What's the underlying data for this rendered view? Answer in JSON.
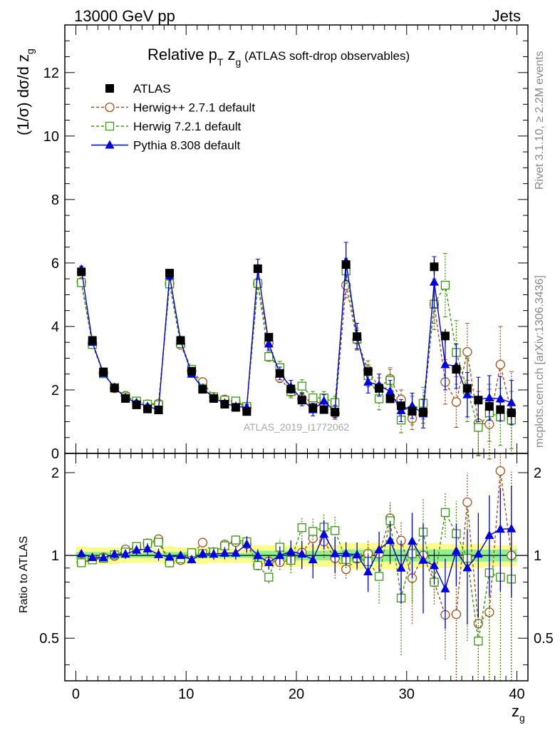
{
  "header": {
    "left": "13000 GeV pp",
    "right": "Jets"
  },
  "side_labels": {
    "rivet": "Rivet 3.1.10, ≥ 2.2M events",
    "mcplots": "mcplots.cern.ch [arXiv:1306.3436]"
  },
  "colors": {
    "atlas": "#000000",
    "herwigpp": "#a0521e",
    "herwig7": "#3c9614",
    "pythia": "#0000e0",
    "band_inner": "#8ff08f",
    "band_outer": "#fcfc8c"
  },
  "chart_data": {
    "type": "scatter",
    "title": {
      "main": "Relative p",
      "sub_T": "T",
      "mid": " z",
      "sub_g": "g",
      "tail": " (ATLAS soft-drop observables)"
    },
    "xlabel": {
      "main": "z",
      "sub": "g"
    },
    "ylabel": {
      "main": "(1/σ) dσ/d z",
      "sub": "g"
    },
    "ratio_ylabel": "Ratio to ATLAS",
    "watermark": "ATLAS_2019_I1772062",
    "xlim": [
      -1,
      41
    ],
    "ylim": [
      0,
      13.5
    ],
    "ratio_ylim": [
      0.35,
      2.35
    ],
    "x_ticks": [
      0,
      10,
      20,
      30,
      40
    ],
    "x_tick_labels": [
      "0",
      "10",
      "20",
      "30",
      "40"
    ],
    "y_ticks": [
      0,
      2,
      4,
      6,
      8,
      10,
      12
    ],
    "y_tick_labels": [
      "0",
      "2",
      "4",
      "6",
      "8",
      "10",
      "12"
    ],
    "ratio_ticks": [
      0.5,
      1,
      2
    ],
    "ratio_tick_labels": [
      "0.5",
      "1",
      "2"
    ],
    "x": [
      0.5,
      1.5,
      2.5,
      3.5,
      4.5,
      5.5,
      6.5,
      7.5,
      8.5,
      9.5,
      10.5,
      11.5,
      12.5,
      13.5,
      14.5,
      15.5,
      16.5,
      17.5,
      18.5,
      19.5,
      20.5,
      21.5,
      22.5,
      23.5,
      24.5,
      25.5,
      26.5,
      27.5,
      28.5,
      29.5,
      30.5,
      31.5,
      32.5,
      33.5,
      34.5,
      35.5,
      36.5,
      37.5,
      38.5,
      39.5
    ],
    "ratio_band_inner": [
      0.97,
      0.97,
      0.97,
      0.98,
      0.98,
      0.98,
      0.98,
      0.98,
      0.97,
      0.97,
      0.97,
      0.98,
      0.98,
      0.98,
      0.98,
      0.98,
      0.96,
      0.96,
      0.96,
      0.96,
      0.96,
      0.96,
      0.96,
      0.96,
      0.95,
      0.95,
      0.95,
      0.95,
      0.95,
      0.95,
      0.95,
      0.95,
      0.95,
      0.95,
      0.95,
      0.95,
      0.95,
      0.95,
      0.95,
      0.95
    ],
    "ratio_band_outer": [
      0.92,
      0.93,
      0.93,
      0.93,
      0.94,
      0.94,
      0.94,
      0.94,
      0.92,
      0.93,
      0.93,
      0.93,
      0.94,
      0.94,
      0.94,
      0.94,
      0.91,
      0.91,
      0.91,
      0.91,
      0.91,
      0.91,
      0.91,
      0.91,
      0.89,
      0.89,
      0.89,
      0.89,
      0.89,
      0.89,
      0.9,
      0.9,
      0.89,
      0.9,
      0.9,
      0.9,
      0.9,
      0.91,
      0.91,
      0.91
    ],
    "series": [
      {
        "name": "ATLAS",
        "key": "atlas",
        "marker": "square-filled",
        "line": "none",
        "values": [
          5.72,
          3.56,
          2.57,
          2.06,
          1.73,
          1.53,
          1.4,
          1.37,
          5.68,
          3.56,
          2.59,
          2.02,
          1.73,
          1.55,
          1.45,
          1.32,
          5.82,
          3.66,
          2.52,
          2.03,
          1.68,
          1.43,
          1.38,
          1.3,
          5.95,
          3.68,
          2.58,
          2.05,
          1.72,
          1.5,
          1.33,
          1.3,
          5.88,
          3.7,
          2.65,
          2.05,
          1.68,
          1.48,
          1.38,
          1.28
        ],
        "errors": [
          0.12,
          0.1,
          0.07,
          0.06,
          0.06,
          0.06,
          0.06,
          0.06,
          0.12,
          0.1,
          0.08,
          0.07,
          0.06,
          0.06,
          0.06,
          0.06,
          0.15,
          0.12,
          0.1,
          0.09,
          0.08,
          0.08,
          0.08,
          0.08,
          0.2,
          0.15,
          0.12,
          0.12,
          0.12,
          0.12,
          0.12,
          0.12,
          0.25,
          0.22,
          0.2,
          0.2,
          0.2,
          0.2,
          0.2,
          0.2
        ]
      },
      {
        "name": "Herwig++ 2.7.1 default",
        "key": "herwigpp",
        "marker": "circle-open",
        "line": "dashed",
        "values": [
          5.4,
          3.45,
          2.53,
          2.05,
          1.82,
          1.63,
          1.55,
          1.57,
          5.35,
          3.42,
          2.6,
          2.25,
          1.78,
          1.7,
          1.62,
          1.45,
          5.35,
          3.48,
          2.38,
          1.95,
          1.72,
          1.65,
          1.55,
          1.27,
          5.3,
          3.58,
          2.62,
          2.08,
          2.35,
          1.7,
          1.1,
          1.3,
          4.7,
          2.25,
          1.62,
          3.2,
          0.95,
          0.92,
          2.8,
          1.28
        ],
        "errors": [
          0.05,
          0.05,
          0.05,
          0.05,
          0.05,
          0.05,
          0.05,
          0.05,
          0.05,
          0.05,
          0.05,
          0.07,
          0.07,
          0.07,
          0.07,
          0.07,
          0.1,
          0.12,
          0.15,
          0.15,
          0.15,
          0.2,
          0.2,
          0.2,
          0.4,
          0.3,
          0.3,
          0.3,
          0.3,
          0.3,
          0.35,
          0.35,
          0.6,
          0.7,
          0.8,
          0.9,
          1.0,
          1.1,
          1.2,
          1.3
        ]
      },
      {
        "name": "Herwig 7.2.1 default",
        "key": "herwig7",
        "marker": "square-open",
        "line": "dashed",
        "values": [
          5.38,
          3.43,
          2.51,
          2.07,
          1.78,
          1.65,
          1.55,
          1.53,
          5.34,
          3.46,
          2.65,
          2.05,
          1.78,
          1.68,
          1.65,
          1.48,
          5.35,
          3.05,
          2.7,
          1.95,
          2.12,
          1.75,
          1.75,
          1.6,
          5.75,
          3.6,
          2.45,
          1.72,
          2.3,
          1.05,
          1.35,
          1.58,
          4.7,
          5.3,
          3.18,
          2.0,
          0.82,
          1.28,
          1.15,
          1.05
        ],
        "errors": [
          0.05,
          0.05,
          0.05,
          0.05,
          0.05,
          0.05,
          0.05,
          0.05,
          0.05,
          0.05,
          0.05,
          0.07,
          0.07,
          0.07,
          0.07,
          0.07,
          0.15,
          0.15,
          0.2,
          0.2,
          0.2,
          0.2,
          0.2,
          0.2,
          0.4,
          0.35,
          0.35,
          0.35,
          0.4,
          0.4,
          0.45,
          0.5,
          0.8,
          1.0,
          1.0,
          1.0,
          0.9,
          0.9,
          0.9,
          0.9
        ]
      },
      {
        "name": "Pythia 8.308 default",
        "key": "pythia",
        "marker": "triangle-filled",
        "line": "solid",
        "values": [
          5.8,
          3.5,
          2.52,
          2.08,
          1.75,
          1.6,
          1.48,
          1.38,
          5.6,
          3.56,
          2.5,
          2.05,
          1.75,
          1.58,
          1.48,
          1.45,
          5.82,
          3.45,
          2.52,
          2.1,
          1.7,
          1.38,
          1.65,
          1.32,
          6.05,
          3.7,
          2.25,
          2.15,
          1.95,
          1.35,
          1.5,
          1.25,
          5.4,
          2.8,
          2.75,
          1.85,
          1.7,
          1.75,
          1.72,
          1.6
        ],
        "errors": [
          0.1,
          0.08,
          0.07,
          0.07,
          0.07,
          0.07,
          0.07,
          0.07,
          0.1,
          0.1,
          0.08,
          0.08,
          0.08,
          0.08,
          0.08,
          0.1,
          0.3,
          0.2,
          0.2,
          0.2,
          0.2,
          0.2,
          0.2,
          0.2,
          0.6,
          0.4,
          0.35,
          0.35,
          0.35,
          0.35,
          0.4,
          0.45,
          0.8,
          0.8,
          0.7,
          0.7,
          0.7,
          0.7,
          0.7,
          0.7
        ]
      }
    ]
  }
}
